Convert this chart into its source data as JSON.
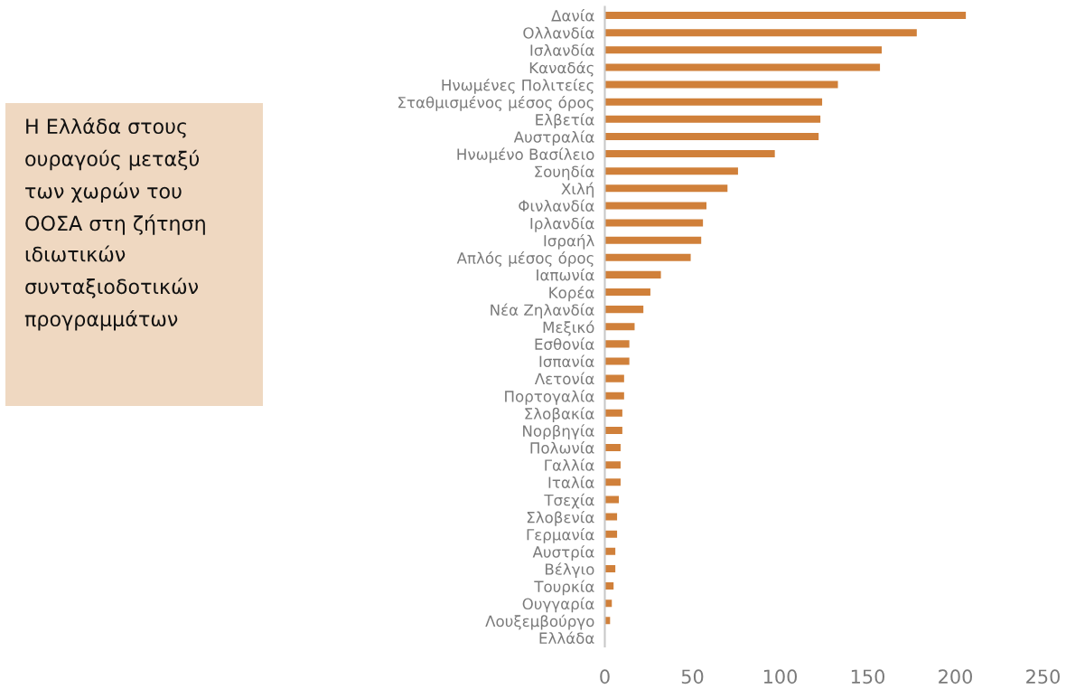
{
  "chart_data": {
    "type": "bar",
    "orientation": "horizontal",
    "categories": [
      "Δανία",
      "Ολλανδία",
      "Ισλανδία",
      "Καναδάς",
      "Ηνωμένες Πολιτείες",
      "Σταθμισμένος μέσος όρος",
      "Ελβετία",
      "Αυστραλία",
      "Ηνωμένο Βασίλειο",
      "Σουηδία",
      "Χιλή",
      "Φινλανδία",
      "Ιρλανδία",
      "Ισραήλ",
      "Απλός μέσος όρος",
      "Ιαπωνία",
      "Κορέα",
      "Νέα Ζηλανδία",
      "Μεξικό",
      "Εσθονία",
      "Ισπανία",
      "Λετονία",
      "Πορτογαλία",
      "Σλοβακία",
      "Νορβηγία",
      "Πολωνία",
      "Γαλλία",
      "Ιταλία",
      "Τσεχία",
      "Σλοβενία",
      "Γερμανία",
      "Αυστρία",
      "Βέλγιο",
      "Τουρκία",
      "Ουγγαρία",
      "Λουξεμβούργο",
      "Ελλάδα"
    ],
    "values": [
      206,
      178,
      158,
      157,
      133,
      124,
      123,
      122,
      97,
      76,
      70,
      58,
      56,
      55,
      49,
      32,
      26,
      22,
      17,
      14,
      14,
      11,
      11,
      10,
      10,
      9,
      9,
      9,
      8,
      7,
      7,
      6,
      6,
      5,
      4,
      3,
      0
    ],
    "color": "#d0803a",
    "xlim": [
      0,
      250
    ],
    "xticks": [
      0,
      50,
      100,
      150,
      200,
      250
    ],
    "annotations": [
      "Η Ελλάδα στους ουραγούς μεταξύ των χωρών του ΟΟΣΑ στη ζήτηση ιδιωτικών συνταξιοδοτικών προγραμμάτων"
    ]
  }
}
